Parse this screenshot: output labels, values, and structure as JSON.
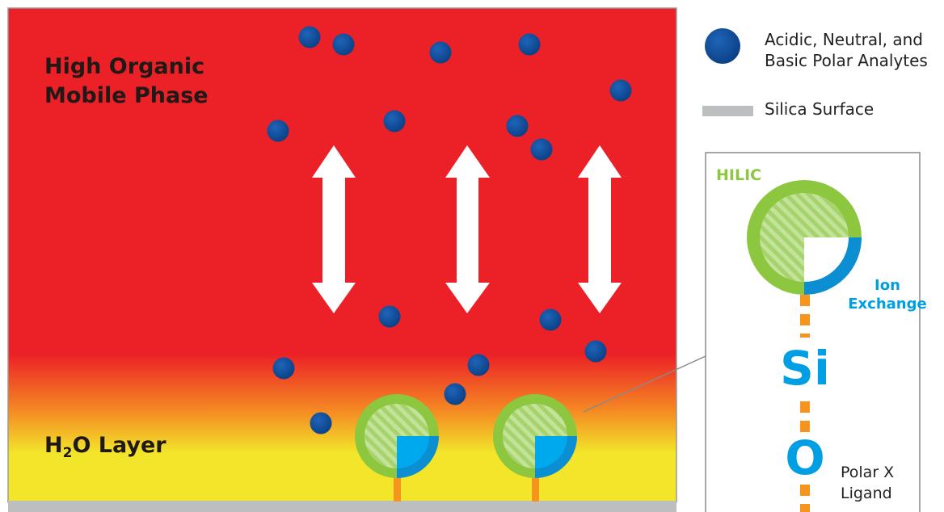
{
  "diagram": {
    "mobile_phase_line1": "High Organic",
    "mobile_phase_line2": "Mobile Phase",
    "water_layer_prefix": "H",
    "water_layer_subscript": "2",
    "water_layer_suffix": "O Layer"
  },
  "legend": {
    "analytes_line1": "Acidic, Neutral, and",
    "analytes_line2": "Basic Polar Analytes",
    "silica_label": "Silica Surface"
  },
  "inset": {
    "hilic_label": "HILIC",
    "ion_label_line1": "Ion",
    "ion_label_line2": "Exchange",
    "si_label": "Si",
    "o_label": "O",
    "ligand_line1": "Polar X",
    "ligand_line2": "Ligand"
  },
  "colors": {
    "mobile_phase": "#ec2027",
    "water_layer": "#f2e52a",
    "silica": "#bcbec0",
    "analyte": "#0d4ea0",
    "hilic_green": "#8dc63f",
    "ion_blue": "#009fe3",
    "linker_orange": "#f7941d",
    "arrow": "#ffffff"
  }
}
